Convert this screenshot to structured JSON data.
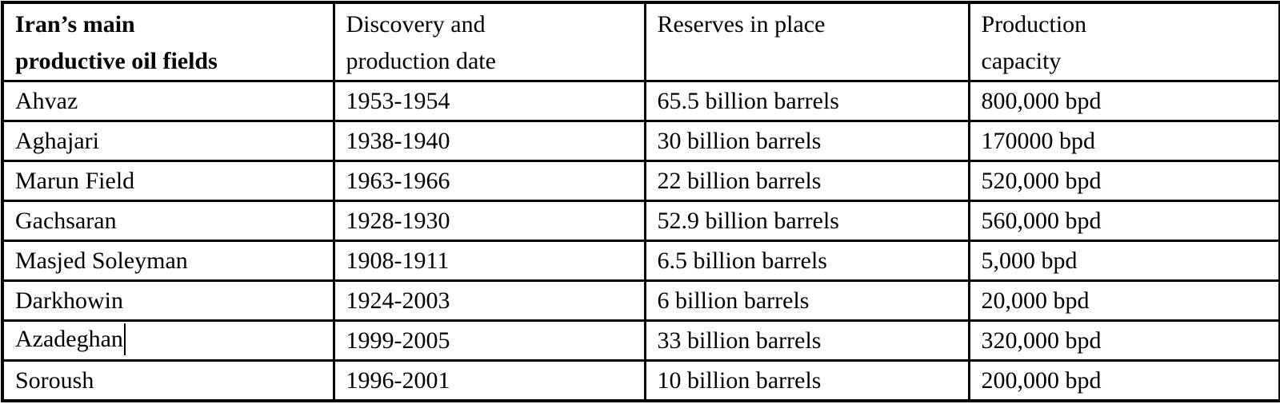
{
  "document": {
    "type": "word-processor table",
    "colors": {
      "border": "#000000",
      "text": "#000000",
      "background": "#ffffff"
    }
  },
  "table": {
    "headers": [
      {
        "label": "Iran’s main productive oil fields",
        "lines": [
          "Iran’s main",
          "productive oil fields"
        ]
      },
      {
        "label": "Discovery and production date",
        "lines": [
          "Discovery and",
          "production date"
        ]
      },
      {
        "label": "Reserves in place",
        "lines": [
          "Reserves in place",
          ""
        ]
      },
      {
        "label": "Production capacity",
        "lines": [
          "Production",
          "capacity"
        ]
      }
    ],
    "rows": [
      [
        "Ahvaz",
        "1953-1954",
        "65.5 billion barrels",
        "800,000 bpd"
      ],
      [
        "Aghajari",
        "1938-1940",
        "30 billion barrels",
        "170000 bpd"
      ],
      [
        "Marun Field",
        "1963-1966",
        "22 billion barrels",
        "520,000 bpd"
      ],
      [
        "Gachsaran",
        "1928-1930",
        "52.9 billion barrels",
        "560,000 bpd"
      ],
      [
        "Masjed Soleyman",
        "1908-1911",
        "6.5 billion barrels",
        "5,000 bpd"
      ],
      [
        "Darkhowin",
        "1924-2003",
        "6 billion barrels",
        "20,000 bpd"
      ],
      [
        "Azadeghan",
        "1999-2005",
        "33 billion barrels",
        "320,000 bpd"
      ],
      [
        "Soroush",
        "1996-2001",
        "10 billion barrels",
        "200,000 bpd"
      ]
    ],
    "text_cursor": {
      "visible": true,
      "located_after_text": "Azadeghan",
      "row_index": 6,
      "col_index": 0
    }
  }
}
